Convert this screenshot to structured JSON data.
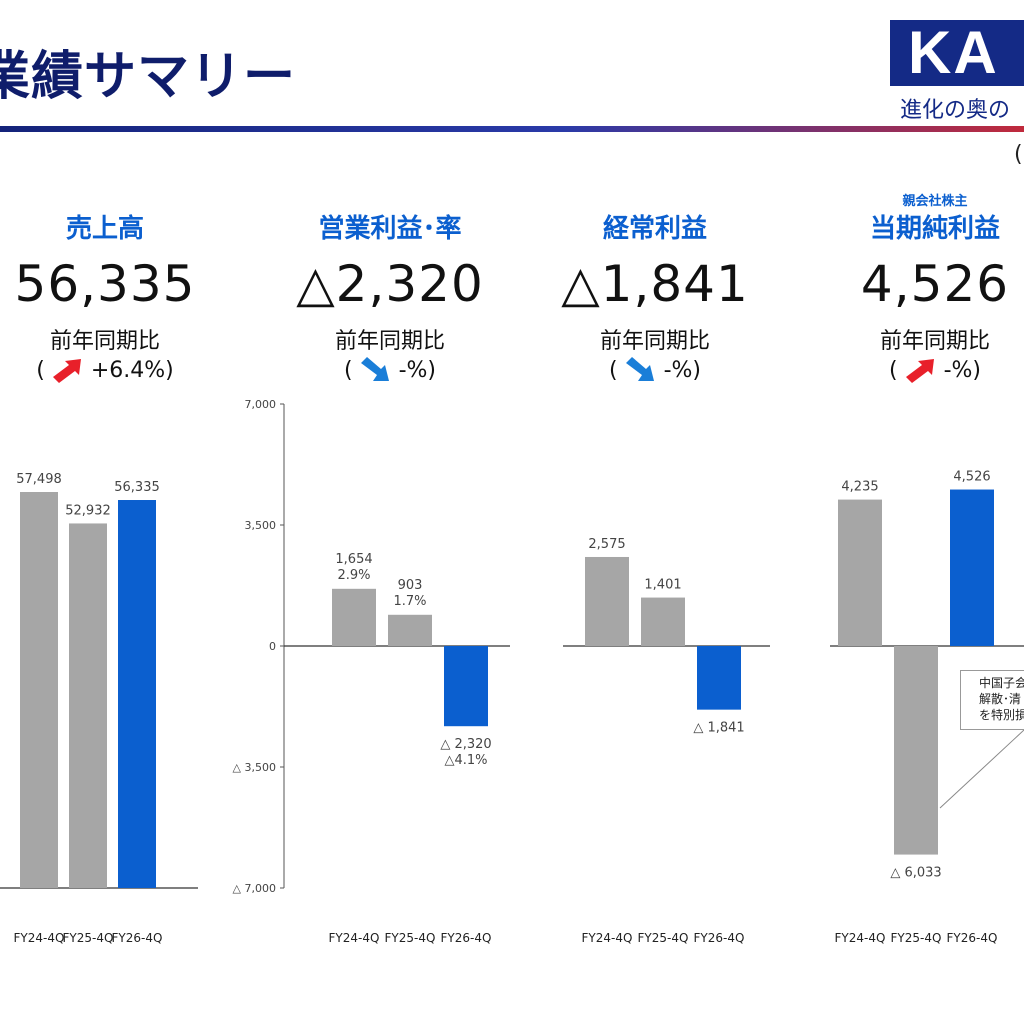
{
  "header": {
    "title": "業績サマリー",
    "logo_text": "KA",
    "slogan": "進化の奥の",
    "unit_paren": "("
  },
  "kpis": [
    {
      "sub": "",
      "label": "売上高",
      "value": "56,335",
      "compare": "前年同期比",
      "change_open": "(",
      "change": "+6.4%)",
      "direction": "up"
    },
    {
      "sub": "",
      "label": "営業利益･率",
      "value": "△2,320",
      "compare": "前年同期比",
      "change_open": "(",
      "change": "-%)",
      "direction": "down"
    },
    {
      "sub": "",
      "label": "経常利益",
      "value": "△1,841",
      "compare": "前年同期比",
      "change_open": "(",
      "change": "-%)",
      "direction": "down"
    },
    {
      "sub": "親会社株主",
      "label": "当期純利益",
      "value": "4,526",
      "compare": "前年同期比",
      "change_open": "(",
      "change": "-%)",
      "direction": "up"
    }
  ],
  "colors": {
    "gray": "#a6a6a6",
    "blue": "#0b5fcf",
    "up_arrow": "#e8202a",
    "down_arrow": "#1a7ed8",
    "title": "#0f1d6b"
  },
  "chart_data": [
    {
      "type": "bar",
      "categories": [
        "FY24-4Q",
        "FY25-4Q",
        "FY26-4Q"
      ],
      "values": [
        57498,
        52932,
        56335
      ],
      "labels": [
        "57,498",
        "52,932",
        "56,335"
      ],
      "sublabels": [
        "",
        "",
        ""
      ]
    },
    {
      "type": "bar",
      "categories": [
        "FY24-4Q",
        "FY25-4Q",
        "FY26-4Q"
      ],
      "values": [
        1654,
        903,
        -2320
      ],
      "labels": [
        "1,654",
        "903",
        "△ 2,320"
      ],
      "sublabels": [
        "2.9%",
        "1.7%",
        "△4.1%"
      ],
      "yticks": [
        7000,
        3500,
        0,
        -3500,
        -7000
      ],
      "ytick_labels": [
        "7,000",
        "3,500",
        "0",
        "△ 3,500",
        "△ 7,000"
      ],
      "ylim": [
        -7000,
        7000
      ]
    },
    {
      "type": "bar",
      "categories": [
        "FY24-4Q",
        "FY25-4Q",
        "FY26-4Q"
      ],
      "values": [
        2575,
        1401,
        -1841
      ],
      "labels": [
        "2,575",
        "1,401",
        "△ 1,841"
      ],
      "sublabels": [
        "",
        "",
        ""
      ],
      "ylim": [
        -7000,
        7000
      ]
    },
    {
      "type": "bar",
      "categories": [
        "FY24-4Q",
        "FY25-4Q",
        "FY26-4Q"
      ],
      "values": [
        4235,
        -6033,
        4526
      ],
      "labels": [
        "4,235",
        "△ 6,033",
        "4,526"
      ],
      "sublabels": [
        "",
        "",
        ""
      ],
      "ylim": [
        -7000,
        7000
      ],
      "annotation": [
        "中国子会",
        "解散･清",
        "を特別損"
      ]
    }
  ]
}
